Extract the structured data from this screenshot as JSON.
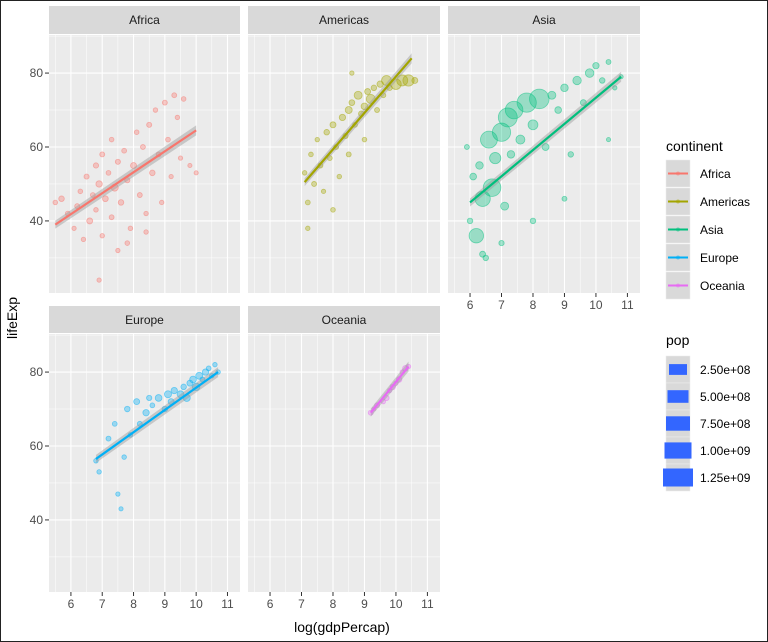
{
  "chart_data": {
    "type": "scatter",
    "xlabel": "log(gdpPercap)",
    "ylabel": "lifeExp",
    "xlim": [
      5.3,
      11.4
    ],
    "ylim": [
      20.5,
      90.3
    ],
    "x_ticks": [
      "6",
      "7",
      "8",
      "9",
      "10",
      "11"
    ],
    "y_ticks": [
      "40",
      "60",
      "80"
    ],
    "grid": true,
    "smooth": "linear fit with confidence band",
    "legend_placement": "right",
    "legends": {
      "color": {
        "title": "continent",
        "entries": [
          "Africa",
          "Americas",
          "Asia",
          "Europe",
          "Oceania"
        ]
      },
      "size": {
        "title": "pop",
        "entries": [
          "2.50e+08",
          "5.00e+08",
          "7.50e+08",
          "1.00e+09",
          "1.25e+09"
        ],
        "values": [
          250,
          500,
          750,
          1000,
          1250
        ],
        "color": "#3366FF"
      }
    },
    "pop_unit_in_points": "millions",
    "facets": [
      {
        "name": "Africa",
        "color": "#F8766D",
        "fit": [
          [
            5.5,
            39
          ],
          [
            10,
            64.5
          ]
        ],
        "points": [
          [
            5.5,
            45,
            5
          ],
          [
            5.7,
            46,
            20
          ],
          [
            5.9,
            42,
            8
          ],
          [
            6.1,
            38,
            3
          ],
          [
            6.2,
            44,
            10
          ],
          [
            6.3,
            48,
            6
          ],
          [
            6.4,
            35,
            4
          ],
          [
            6.5,
            52,
            12
          ],
          [
            6.6,
            40,
            30
          ],
          [
            6.7,
            47,
            8
          ],
          [
            6.8,
            55,
            15
          ],
          [
            6.8,
            43,
            5
          ],
          [
            6.9,
            50,
            40
          ],
          [
            7.0,
            58,
            10
          ],
          [
            7.0,
            36,
            4
          ],
          [
            7.1,
            46,
            25
          ],
          [
            7.2,
            53,
            7
          ],
          [
            7.3,
            62,
            6
          ],
          [
            7.3,
            41,
            9
          ],
          [
            7.4,
            49,
            60
          ],
          [
            7.5,
            56,
            12
          ],
          [
            7.5,
            32,
            3
          ],
          [
            7.6,
            45,
            20
          ],
          [
            7.7,
            59,
            8
          ],
          [
            7.8,
            51,
            14
          ],
          [
            7.9,
            38,
            5
          ],
          [
            8.0,
            55,
            30
          ],
          [
            8.1,
            64,
            6
          ],
          [
            8.2,
            47,
            10
          ],
          [
            8.3,
            60,
            9
          ],
          [
            8.4,
            42,
            4
          ],
          [
            8.5,
            66,
            12
          ],
          [
            8.6,
            53,
            20
          ],
          [
            8.7,
            70,
            5
          ],
          [
            8.8,
            58,
            8
          ],
          [
            8.9,
            45,
            4
          ],
          [
            9.0,
            72,
            10
          ],
          [
            9.1,
            62,
            7
          ],
          [
            9.2,
            52,
            3
          ],
          [
            9.3,
            74,
            9
          ],
          [
            9.4,
            68,
            4
          ],
          [
            9.5,
            57,
            3
          ],
          [
            9.6,
            73,
            6
          ],
          [
            9.8,
            55,
            2
          ],
          [
            10.0,
            53,
            2
          ],
          [
            6.9,
            24,
            3
          ],
          [
            7.8,
            34,
            6
          ],
          [
            8.4,
            37,
            4
          ]
        ]
      },
      {
        "name": "Americas",
        "color": "#A3A500",
        "fit": [
          [
            7.1,
            50.5
          ],
          [
            10.5,
            84
          ]
        ],
        "points": [
          [
            7.1,
            53,
            5
          ],
          [
            7.2,
            45,
            8
          ],
          [
            7.3,
            58,
            6
          ],
          [
            7.4,
            50,
            10
          ],
          [
            7.5,
            62,
            4
          ],
          [
            7.6,
            55,
            12
          ],
          [
            7.7,
            48,
            3
          ],
          [
            7.8,
            64,
            20
          ],
          [
            7.9,
            57,
            8
          ],
          [
            8.0,
            66,
            30
          ],
          [
            8.1,
            60,
            10
          ],
          [
            8.2,
            52,
            5
          ],
          [
            8.3,
            68,
            40
          ],
          [
            8.4,
            63,
            15
          ],
          [
            8.5,
            70,
            60
          ],
          [
            8.5,
            58,
            10
          ],
          [
            8.6,
            72,
            25
          ],
          [
            8.7,
            66,
            8
          ],
          [
            8.8,
            74,
            100
          ],
          [
            8.9,
            69,
            20
          ],
          [
            9.0,
            71,
            50
          ],
          [
            9.1,
            75,
            30
          ],
          [
            9.2,
            73,
            150
          ],
          [
            9.3,
            76,
            20
          ],
          [
            9.4,
            70,
            10
          ],
          [
            9.5,
            77,
            40
          ],
          [
            9.6,
            74,
            10
          ],
          [
            9.7,
            78,
            200
          ],
          [
            9.8,
            76,
            15
          ],
          [
            10.0,
            77,
            250
          ],
          [
            10.2,
            78,
            280
          ],
          [
            10.4,
            78,
            300
          ],
          [
            10.6,
            78,
            30
          ],
          [
            7.2,
            38,
            4
          ],
          [
            8.0,
            43,
            6
          ],
          [
            8.6,
            80,
            3
          ],
          [
            9.0,
            62,
            6
          ]
        ]
      },
      {
        "name": "Asia",
        "color": "#00BF7D",
        "fit": [
          [
            6,
            45
          ],
          [
            10.8,
            79
          ]
        ],
        "points": [
          [
            5.9,
            60,
            10
          ],
          [
            6.0,
            40,
            20
          ],
          [
            6.1,
            52,
            50
          ],
          [
            6.2,
            36,
            600
          ],
          [
            6.3,
            55,
            80
          ],
          [
            6.4,
            46,
            700
          ],
          [
            6.5,
            30,
            20
          ],
          [
            6.6,
            62,
            900
          ],
          [
            6.7,
            49,
            1000
          ],
          [
            6.8,
            57,
            300
          ],
          [
            7.0,
            64,
            1100
          ],
          [
            7.1,
            44,
            100
          ],
          [
            7.2,
            68,
            1200
          ],
          [
            7.3,
            58,
            80
          ],
          [
            7.4,
            70,
            1000
          ],
          [
            7.6,
            62,
            150
          ],
          [
            7.8,
            72,
            1250
          ],
          [
            8.0,
            66,
            200
          ],
          [
            8.2,
            73,
            1300
          ],
          [
            8.4,
            60,
            60
          ],
          [
            8.6,
            74,
            100
          ],
          [
            8.8,
            70,
            50
          ],
          [
            9.0,
            76,
            80
          ],
          [
            9.2,
            58,
            20
          ],
          [
            9.4,
            78,
            120
          ],
          [
            9.6,
            72,
            30
          ],
          [
            9.8,
            80,
            126
          ],
          [
            10.0,
            82,
            40
          ],
          [
            10.2,
            78,
            20
          ],
          [
            10.4,
            83,
            10
          ],
          [
            10.6,
            76,
            3
          ],
          [
            10.8,
            79,
            2
          ],
          [
            10.4,
            62,
            2
          ],
          [
            9.0,
            46,
            10
          ],
          [
            8.0,
            40,
            20
          ],
          [
            7.0,
            34,
            15
          ],
          [
            6.4,
            31,
            30
          ]
        ]
      },
      {
        "name": "Europe",
        "color": "#00B0F6",
        "fit": [
          [
            6.8,
            56.5
          ],
          [
            10.7,
            80
          ]
        ],
        "points": [
          [
            6.8,
            56,
            5
          ],
          [
            6.9,
            53,
            4
          ],
          [
            7.2,
            62,
            10
          ],
          [
            7.4,
            66,
            8
          ],
          [
            7.5,
            47,
            3
          ],
          [
            7.6,
            43,
            2
          ],
          [
            7.7,
            57,
            5
          ],
          [
            7.8,
            70,
            20
          ],
          [
            7.9,
            63,
            6
          ],
          [
            8.1,
            72,
            30
          ],
          [
            8.2,
            66,
            10
          ],
          [
            8.4,
            69,
            40
          ],
          [
            8.5,
            73,
            15
          ],
          [
            8.6,
            71,
            8
          ],
          [
            8.8,
            73,
            50
          ],
          [
            9.0,
            70,
            20
          ],
          [
            9.1,
            74,
            60
          ],
          [
            9.2,
            72,
            30
          ],
          [
            9.3,
            75,
            40
          ],
          [
            9.5,
            74,
            55
          ],
          [
            9.6,
            76,
            20
          ],
          [
            9.7,
            73,
            60
          ],
          [
            9.8,
            77,
            30
          ],
          [
            9.9,
            78,
            50
          ],
          [
            10.0,
            76,
            80
          ],
          [
            10.1,
            79,
            60
          ],
          [
            10.2,
            78,
            10
          ],
          [
            10.3,
            80,
            40
          ],
          [
            10.4,
            81,
            8
          ],
          [
            10.5,
            79,
            5
          ],
          [
            10.6,
            82,
            4
          ],
          [
            10.7,
            80,
            5
          ]
        ]
      },
      {
        "name": "Oceania",
        "color": "#E76BF3",
        "fit": [
          [
            9.2,
            69
          ],
          [
            10.4,
            81.5
          ]
        ],
        "points": [
          [
            9.2,
            69,
            10
          ],
          [
            9.3,
            70,
            2
          ],
          [
            9.4,
            71,
            12
          ],
          [
            9.6,
            72,
            3
          ],
          [
            9.7,
            73,
            15
          ],
          [
            9.8,
            75,
            3
          ],
          [
            9.9,
            76,
            18
          ],
          [
            10.0,
            77,
            3
          ],
          [
            10.1,
            78,
            20
          ],
          [
            10.2,
            80,
            4
          ],
          [
            10.3,
            81,
            22
          ],
          [
            10.4,
            81.5,
            4
          ]
        ]
      }
    ]
  }
}
